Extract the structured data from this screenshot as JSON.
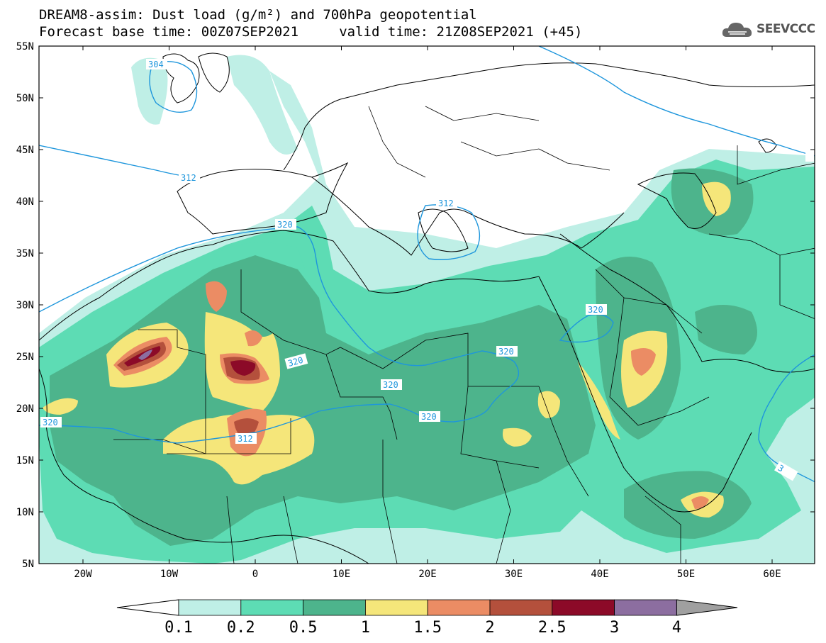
{
  "header": {
    "title_line1": "DREAM8-assim: Dust load (g/m²) and 700hPa geopotential",
    "title_line2": "Forecast base time: 00Z07SEP2021     valid time: 21Z08SEP2021 (+45)"
  },
  "logo": {
    "text": "SEEVCCC",
    "icon": "cloud-logo-icon"
  },
  "map": {
    "lat_labels": [
      "55N",
      "50N",
      "45N",
      "40N",
      "35N",
      "30N",
      "25N",
      "20N",
      "15N",
      "10N",
      "5N"
    ],
    "lon_labels": [
      "20W",
      "10W",
      "0",
      "10E",
      "20E",
      "30E",
      "40E",
      "50E",
      "60E"
    ],
    "contour_labels": [
      "304",
      "312",
      "312",
      "320",
      "320",
      "320",
      "320",
      "320",
      "320",
      "320",
      "312",
      "3"
    ]
  },
  "legend": {
    "ticks": [
      "0.1",
      "0.2",
      "0.5",
      "1",
      "1.5",
      "2",
      "2.5",
      "3",
      "4"
    ],
    "colors": [
      "#ffffff",
      "#bfefe6",
      "#5ddcb4",
      "#4db48c",
      "#f5e67a",
      "#eb8c64",
      "#b4503c",
      "#8c0a28",
      "#8c6ea0",
      "#a0a0a0"
    ]
  }
}
